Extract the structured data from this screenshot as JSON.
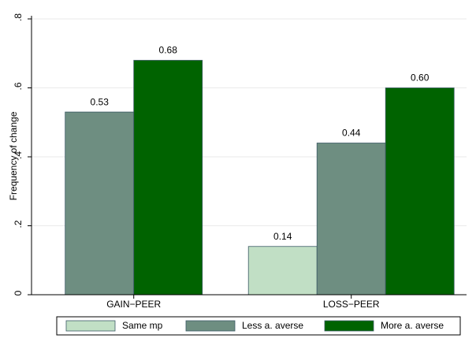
{
  "chart_data": {
    "type": "bar",
    "y_label": "Frequency of change",
    "categories": [
      "GAIN−PEER",
      "LOSS−PEER"
    ],
    "series": [
      {
        "name": "Same mp",
        "color": "#c1dfc5",
        "values": [
          null,
          0.14
        ],
        "value_labels": [
          null,
          "0.14"
        ]
      },
      {
        "name": "Less a. averse",
        "color": "#6e8e81",
        "values": [
          0.53,
          0.44
        ],
        "value_labels": [
          "0.53",
          "0.44"
        ]
      },
      {
        "name": "More a. averse",
        "color": "#006300",
        "values": [
          0.68,
          0.6
        ],
        "value_labels": [
          "0.68",
          "0.60"
        ]
      }
    ],
    "ylim": [
      0,
      0.8
    ],
    "yticks": [
      0,
      {
        "value": 0.2,
        "label": ".2"
      },
      {
        "value": 0.4,
        "label": ".4"
      },
      {
        "value": 0.6,
        "label": ".6"
      },
      {
        "value": 0.8,
        "label": ".8"
      }
    ],
    "grid": true,
    "legend": "bottom"
  }
}
